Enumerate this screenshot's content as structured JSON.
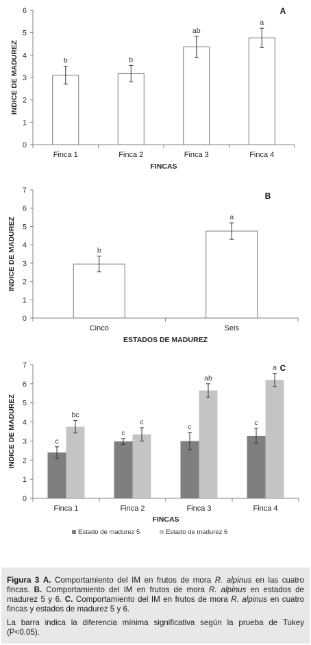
{
  "chart_data": [
    {
      "type": "bar",
      "panel_letter": "A",
      "categories": [
        "Finca 1",
        "Finca 2",
        "Finca 3",
        "Finca 4"
      ],
      "series": [
        {
          "values": [
            3.1,
            3.17,
            4.37,
            4.77
          ],
          "errors": [
            0.4,
            0.37,
            0.47,
            0.43
          ],
          "labels": [
            "b",
            "b",
            "ab",
            "a"
          ],
          "color": "#ffffff"
        }
      ],
      "xlabel": "FINCAS",
      "ylabel": "INDICE DE MADUREZ",
      "ylim": [
        0,
        6
      ],
      "yticks": [
        0,
        1,
        2,
        3,
        4,
        5,
        6
      ],
      "grid": false
    },
    {
      "type": "bar",
      "panel_letter": "B",
      "categories": [
        "Cinco",
        "Seis"
      ],
      "series": [
        {
          "values": [
            2.95,
            4.75
          ],
          "errors": [
            0.43,
            0.45
          ],
          "labels": [
            "b",
            "a"
          ],
          "color": "#ffffff"
        }
      ],
      "xlabel": "ESTADOS DE MADUREZ",
      "ylabel": "INDICE DE MADUREZ",
      "ylim": [
        0,
        7
      ],
      "yticks": [
        0,
        1,
        2,
        3,
        4,
        5,
        6,
        7
      ],
      "grid": false
    },
    {
      "type": "bar",
      "panel_letter": "C",
      "categories": [
        "Finca 1",
        "Finca 2",
        "Finca 3",
        "Finca 4"
      ],
      "series": [
        {
          "name": "Estado de madurez 5",
          "values": [
            2.4,
            2.98,
            3.0,
            3.27
          ],
          "errors": [
            0.3,
            0.15,
            0.45,
            0.4
          ],
          "labels": [
            "c",
            "c",
            "c",
            "c"
          ],
          "color": "#7f7f7f"
        },
        {
          "name": "Estado de madurez 6",
          "values": [
            3.75,
            3.35,
            5.65,
            6.2
          ],
          "errors": [
            0.33,
            0.35,
            0.35,
            0.35
          ],
          "labels": [
            "bc",
            "c",
            "ab",
            "a"
          ],
          "color": "#c4c4c4"
        }
      ],
      "xlabel": "FINCAS",
      "ylabel": "INDICE DE MADUREZ",
      "ylim": [
        0,
        7
      ],
      "yticks": [
        0,
        1,
        2,
        3,
        4,
        5,
        6,
        7
      ],
      "grid": false,
      "legend_position": "bottom"
    }
  ],
  "caption": {
    "fig_label": "Figura 3",
    "part_a": {
      "letter": "A.",
      "text1": "Comportamiento del IM en frutos de mora",
      "species": "R. alpinus",
      "text2": "en las cuatro fincas."
    },
    "part_b": {
      "letter": "B.",
      "text1": "Comportamiento del IM en frutos de mora",
      "species": "R. alpinus",
      "text2": "en estados de madurez 5 y 6."
    },
    "part_c": {
      "letter": "C.",
      "text1": "Comportamiento del IM en frutos de mora",
      "species": "R. alpinus",
      "text2": "en  cuatro fincas y estados de madurez 5 y 6."
    },
    "note": "La barra indica la diferencia mínima significativa según la prueba de Tukey (P<0.05)."
  }
}
